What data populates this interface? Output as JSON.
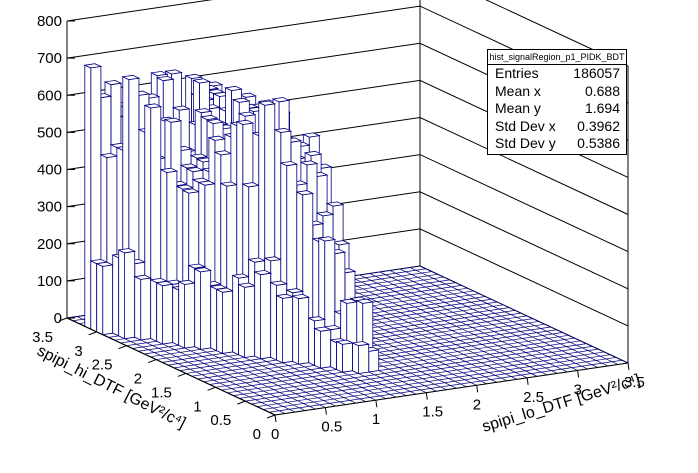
{
  "stats": {
    "title": "hist_signalRegion_p1_PIDK_BDT",
    "rows": [
      {
        "label": "Entries",
        "value": "186057"
      },
      {
        "label": "Mean x",
        "value": "0.688"
      },
      {
        "label": "Mean y",
        "value": "1.694"
      },
      {
        "label": "Std Dev x",
        "value": "0.3962"
      },
      {
        "label": "Std Dev y",
        "value": "0.5386"
      }
    ]
  },
  "chart_data": {
    "type": "lego",
    "title": "",
    "xlabel": "spipi_lo_DTF [GeV²/c⁴]",
    "ylabel": "spipi_hi_DTF [GeV²/c⁴]",
    "zlabel": "",
    "xlim": [
      0,
      3.5
    ],
    "ylim": [
      0,
      3.5
    ],
    "zlim": [
      0,
      800
    ],
    "x_ticks": [
      "0",
      "0.5",
      "1",
      "1.5",
      "2",
      "2.5",
      "3",
      "3.5"
    ],
    "y_ticks": [
      "0",
      "0.5",
      "1",
      "1.5",
      "2",
      "2.5",
      "3",
      "3.5"
    ],
    "z_ticks": [
      "0",
      "100",
      "200",
      "300",
      "400",
      "500",
      "600",
      "700",
      "800"
    ],
    "bins": 35,
    "occupied_region": {
      "x_min": 0.0,
      "x_max": 1.5,
      "y_min": 0.8,
      "y_max": 3.2
    },
    "peak_counts": [
      {
        "x": 0.05,
        "y": 2.9,
        "count": 590
      },
      {
        "x": 0.05,
        "y": 2.2,
        "count": 600
      },
      {
        "x": 0.05,
        "y": 1.6,
        "count": 560
      },
      {
        "x": 0.3,
        "y": 2.4,
        "count": 520
      },
      {
        "x": 0.6,
        "y": 1.9,
        "count": 500
      },
      {
        "x": 0.9,
        "y": 1.6,
        "count": 640
      },
      {
        "x": 1.2,
        "y": 1.3,
        "count": 410
      },
      {
        "x": 1.4,
        "y": 1.1,
        "count": 150
      }
    ],
    "colors": {
      "bar_fill": "#ffffff",
      "bar_edge": "#000080",
      "frame": "#000000"
    }
  }
}
